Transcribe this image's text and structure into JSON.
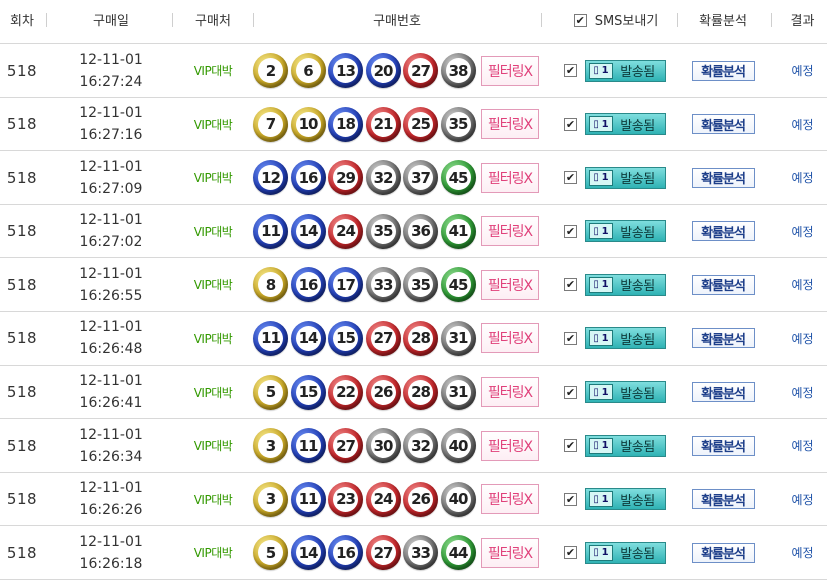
{
  "headers": {
    "round": "회차",
    "date": "구매일",
    "shop": "구매처",
    "numbers": "구매번호",
    "sms": "SMS보내기",
    "analysis": "확률분석",
    "result": "결과"
  },
  "colors": {
    "yellow": "#c9a826",
    "blue": "#2340b8",
    "red": "#c4262a",
    "gray": "#6f6f6f",
    "green": "#2e9a35"
  },
  "rows": [
    {
      "round": "518",
      "date": "12-11-01",
      "time": "16:27:24",
      "shop": "VIP대박",
      "balls": [
        {
          "n": "2",
          "c": "yellow"
        },
        {
          "n": "6",
          "c": "yellow"
        },
        {
          "n": "13",
          "c": "blue"
        },
        {
          "n": "20",
          "c": "blue"
        },
        {
          "n": "27",
          "c": "red"
        },
        {
          "n": "38",
          "c": "gray"
        }
      ],
      "filter": "필터링X",
      "sms_checked": true,
      "sms_count": "1",
      "sms_label": "발송됨",
      "analysis": "확률분석",
      "result": "예정"
    },
    {
      "round": "518",
      "date": "12-11-01",
      "time": "16:27:16",
      "shop": "VIP대박",
      "balls": [
        {
          "n": "7",
          "c": "yellow"
        },
        {
          "n": "10",
          "c": "yellow"
        },
        {
          "n": "18",
          "c": "blue"
        },
        {
          "n": "21",
          "c": "red"
        },
        {
          "n": "25",
          "c": "red"
        },
        {
          "n": "35",
          "c": "gray"
        }
      ],
      "filter": "필터링X",
      "sms_checked": true,
      "sms_count": "1",
      "sms_label": "발송됨",
      "analysis": "확률분석",
      "result": "예정"
    },
    {
      "round": "518",
      "date": "12-11-01",
      "time": "16:27:09",
      "shop": "VIP대박",
      "balls": [
        {
          "n": "12",
          "c": "blue"
        },
        {
          "n": "16",
          "c": "blue"
        },
        {
          "n": "29",
          "c": "red"
        },
        {
          "n": "32",
          "c": "gray"
        },
        {
          "n": "37",
          "c": "gray"
        },
        {
          "n": "45",
          "c": "green"
        }
      ],
      "filter": "필터링X",
      "sms_checked": true,
      "sms_count": "1",
      "sms_label": "발송됨",
      "analysis": "확률분석",
      "result": "예정"
    },
    {
      "round": "518",
      "date": "12-11-01",
      "time": "16:27:02",
      "shop": "VIP대박",
      "balls": [
        {
          "n": "11",
          "c": "blue"
        },
        {
          "n": "14",
          "c": "blue"
        },
        {
          "n": "24",
          "c": "red"
        },
        {
          "n": "35",
          "c": "gray"
        },
        {
          "n": "36",
          "c": "gray"
        },
        {
          "n": "41",
          "c": "green"
        }
      ],
      "filter": "필터링X",
      "sms_checked": true,
      "sms_count": "1",
      "sms_label": "발송됨",
      "analysis": "확률분석",
      "result": "예정"
    },
    {
      "round": "518",
      "date": "12-11-01",
      "time": "16:26:55",
      "shop": "VIP대박",
      "balls": [
        {
          "n": "8",
          "c": "yellow"
        },
        {
          "n": "16",
          "c": "blue"
        },
        {
          "n": "17",
          "c": "blue"
        },
        {
          "n": "33",
          "c": "gray"
        },
        {
          "n": "35",
          "c": "gray"
        },
        {
          "n": "45",
          "c": "green"
        }
      ],
      "filter": "필터링X",
      "sms_checked": true,
      "sms_count": "1",
      "sms_label": "발송됨",
      "analysis": "확률분석",
      "result": "예정"
    },
    {
      "round": "518",
      "date": "12-11-01",
      "time": "16:26:48",
      "shop": "VIP대박",
      "balls": [
        {
          "n": "11",
          "c": "blue"
        },
        {
          "n": "14",
          "c": "blue"
        },
        {
          "n": "15",
          "c": "blue"
        },
        {
          "n": "27",
          "c": "red"
        },
        {
          "n": "28",
          "c": "red"
        },
        {
          "n": "31",
          "c": "gray"
        }
      ],
      "filter": "필터링X",
      "sms_checked": true,
      "sms_count": "1",
      "sms_label": "발송됨",
      "analysis": "확률분석",
      "result": "예정"
    },
    {
      "round": "518",
      "date": "12-11-01",
      "time": "16:26:41",
      "shop": "VIP대박",
      "balls": [
        {
          "n": "5",
          "c": "yellow"
        },
        {
          "n": "15",
          "c": "blue"
        },
        {
          "n": "22",
          "c": "red"
        },
        {
          "n": "26",
          "c": "red"
        },
        {
          "n": "28",
          "c": "red"
        },
        {
          "n": "31",
          "c": "gray"
        }
      ],
      "filter": "필터링X",
      "sms_checked": true,
      "sms_count": "1",
      "sms_label": "발송됨",
      "analysis": "확률분석",
      "result": "예정"
    },
    {
      "round": "518",
      "date": "12-11-01",
      "time": "16:26:34",
      "shop": "VIP대박",
      "balls": [
        {
          "n": "3",
          "c": "yellow"
        },
        {
          "n": "11",
          "c": "blue"
        },
        {
          "n": "27",
          "c": "red"
        },
        {
          "n": "30",
          "c": "gray"
        },
        {
          "n": "32",
          "c": "gray"
        },
        {
          "n": "40",
          "c": "gray"
        }
      ],
      "filter": "필터링X",
      "sms_checked": true,
      "sms_count": "1",
      "sms_label": "발송됨",
      "analysis": "확률분석",
      "result": "예정"
    },
    {
      "round": "518",
      "date": "12-11-01",
      "time": "16:26:26",
      "shop": "VIP대박",
      "balls": [
        {
          "n": "3",
          "c": "yellow"
        },
        {
          "n": "11",
          "c": "blue"
        },
        {
          "n": "23",
          "c": "red"
        },
        {
          "n": "24",
          "c": "red"
        },
        {
          "n": "26",
          "c": "red"
        },
        {
          "n": "40",
          "c": "gray"
        }
      ],
      "filter": "필터링X",
      "sms_checked": true,
      "sms_count": "1",
      "sms_label": "발송됨",
      "analysis": "확률분석",
      "result": "예정"
    },
    {
      "round": "518",
      "date": "12-11-01",
      "time": "16:26:18",
      "shop": "VIP대박",
      "balls": [
        {
          "n": "5",
          "c": "yellow"
        },
        {
          "n": "14",
          "c": "blue"
        },
        {
          "n": "16",
          "c": "blue"
        },
        {
          "n": "27",
          "c": "red"
        },
        {
          "n": "33",
          "c": "gray"
        },
        {
          "n": "44",
          "c": "green"
        }
      ],
      "filter": "필터링X",
      "sms_checked": true,
      "sms_count": "1",
      "sms_label": "발송됨",
      "analysis": "확률분석",
      "result": "예정"
    }
  ]
}
